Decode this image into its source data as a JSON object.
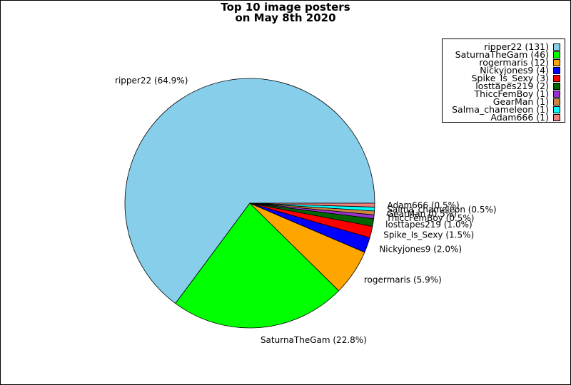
{
  "chart_data": {
    "type": "pie",
    "title_lines": [
      "Top 10 image posters",
      "on May 8th 2020"
    ],
    "slices": [
      {
        "name": "ripper22",
        "value": 131,
        "percent_label": "ripper22 (64.9%)",
        "legend_label": "ripper22 (131)",
        "color": "#87CEEB"
      },
      {
        "name": "SaturnaTheGam",
        "value": 46,
        "percent_label": "SaturnaTheGam (22.8%)",
        "legend_label": "SaturnaTheGam (46)",
        "color": "#00FF00"
      },
      {
        "name": "rogermaris",
        "value": 12,
        "percent_label": "rogermaris (5.9%)",
        "legend_label": "rogermaris (12)",
        "color": "#FFA500"
      },
      {
        "name": "Nickyjones9",
        "value": 4,
        "percent_label": "Nickyjones9 (2.0%)",
        "legend_label": "Nickyjones9 (4)",
        "color": "#0000FF"
      },
      {
        "name": "Spike_Is_Sexy",
        "value": 3,
        "percent_label": "Spike_Is_Sexy (1.5%)",
        "legend_label": "Spike_Is_Sexy (3)",
        "color": "#FF0000"
      },
      {
        "name": "losttapes219",
        "value": 2,
        "percent_label": "losttapes219 (1.0%)",
        "legend_label": "losttapes219 (2)",
        "color": "#006400"
      },
      {
        "name": "ThiccFemBoy",
        "value": 1,
        "percent_label": "ThiccFemBoy (0.5%)",
        "legend_label": "ThiccFemBoy (1)",
        "color": "#9932CC"
      },
      {
        "name": "GearMan",
        "value": 1,
        "percent_label": "GearMan (0.5%)",
        "legend_label": "GearMan (1)",
        "color": "#CD853F"
      },
      {
        "name": "Salma_chameleon",
        "value": 1,
        "percent_label": "Salma_chameleon (0.5%)",
        "legend_label": "Salma_chameleon (1)",
        "color": "#00FFFF"
      },
      {
        "name": "Adam666",
        "value": 1,
        "percent_label": "Adam666 (0.5%)",
        "legend_label": "Adam666 (1)",
        "color": "#F08080"
      }
    ],
    "start_angle": "0 degrees (3 o'clock), counter-clockwise",
    "legend_position": "top-right"
  }
}
